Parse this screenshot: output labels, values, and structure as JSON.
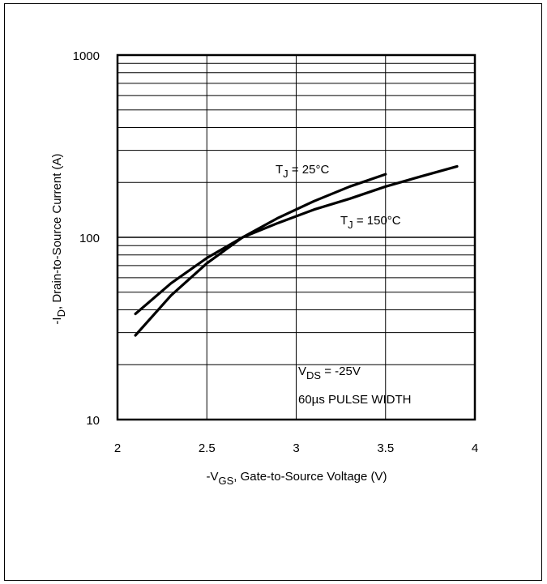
{
  "chart_data": {
    "type": "line",
    "title": "",
    "xlabel": {
      "prefix": "-V",
      "sub": "GS",
      "suffix": ", Gate-to-Source Voltage (V)"
    },
    "ylabel": {
      "prefix": "-I",
      "sub": "D",
      "suffix": ", Drain-to-Source Current (A)"
    },
    "xlim": [
      2,
      4
    ],
    "ylim": [
      10,
      1000
    ],
    "yscale": "log",
    "grid": true,
    "xticks": [
      "2",
      "2.5",
      "3",
      "3.5",
      "4"
    ],
    "yticks": [
      "10",
      "100",
      "1000"
    ],
    "series": [
      {
        "name_prefix": "T",
        "name_sub": "J",
        "name_suffix": " =  25°C",
        "x": [
          2.1,
          2.3,
          2.5,
          2.7,
          2.9,
          3.1,
          3.3,
          3.5
        ],
        "y": [
          29,
          48,
          72,
          100,
          128,
          158,
          190,
          222
        ]
      },
      {
        "name_prefix": "T",
        "name_sub": "J",
        "name_suffix": " = 150°C",
        "x": [
          2.1,
          2.3,
          2.5,
          2.7,
          2.9,
          3.1,
          3.3,
          3.5,
          3.7,
          3.9
        ],
        "y": [
          38,
          56,
          77,
          100,
          120,
          142,
          163,
          190,
          216,
          245
        ]
      }
    ],
    "annotations": {
      "vds_prefix": "V",
      "vds_sub": "DS",
      "vds_suffix": " = -25V",
      "pulse": "60µs PULSE  WIDTH"
    },
    "line_color": "#000000"
  }
}
